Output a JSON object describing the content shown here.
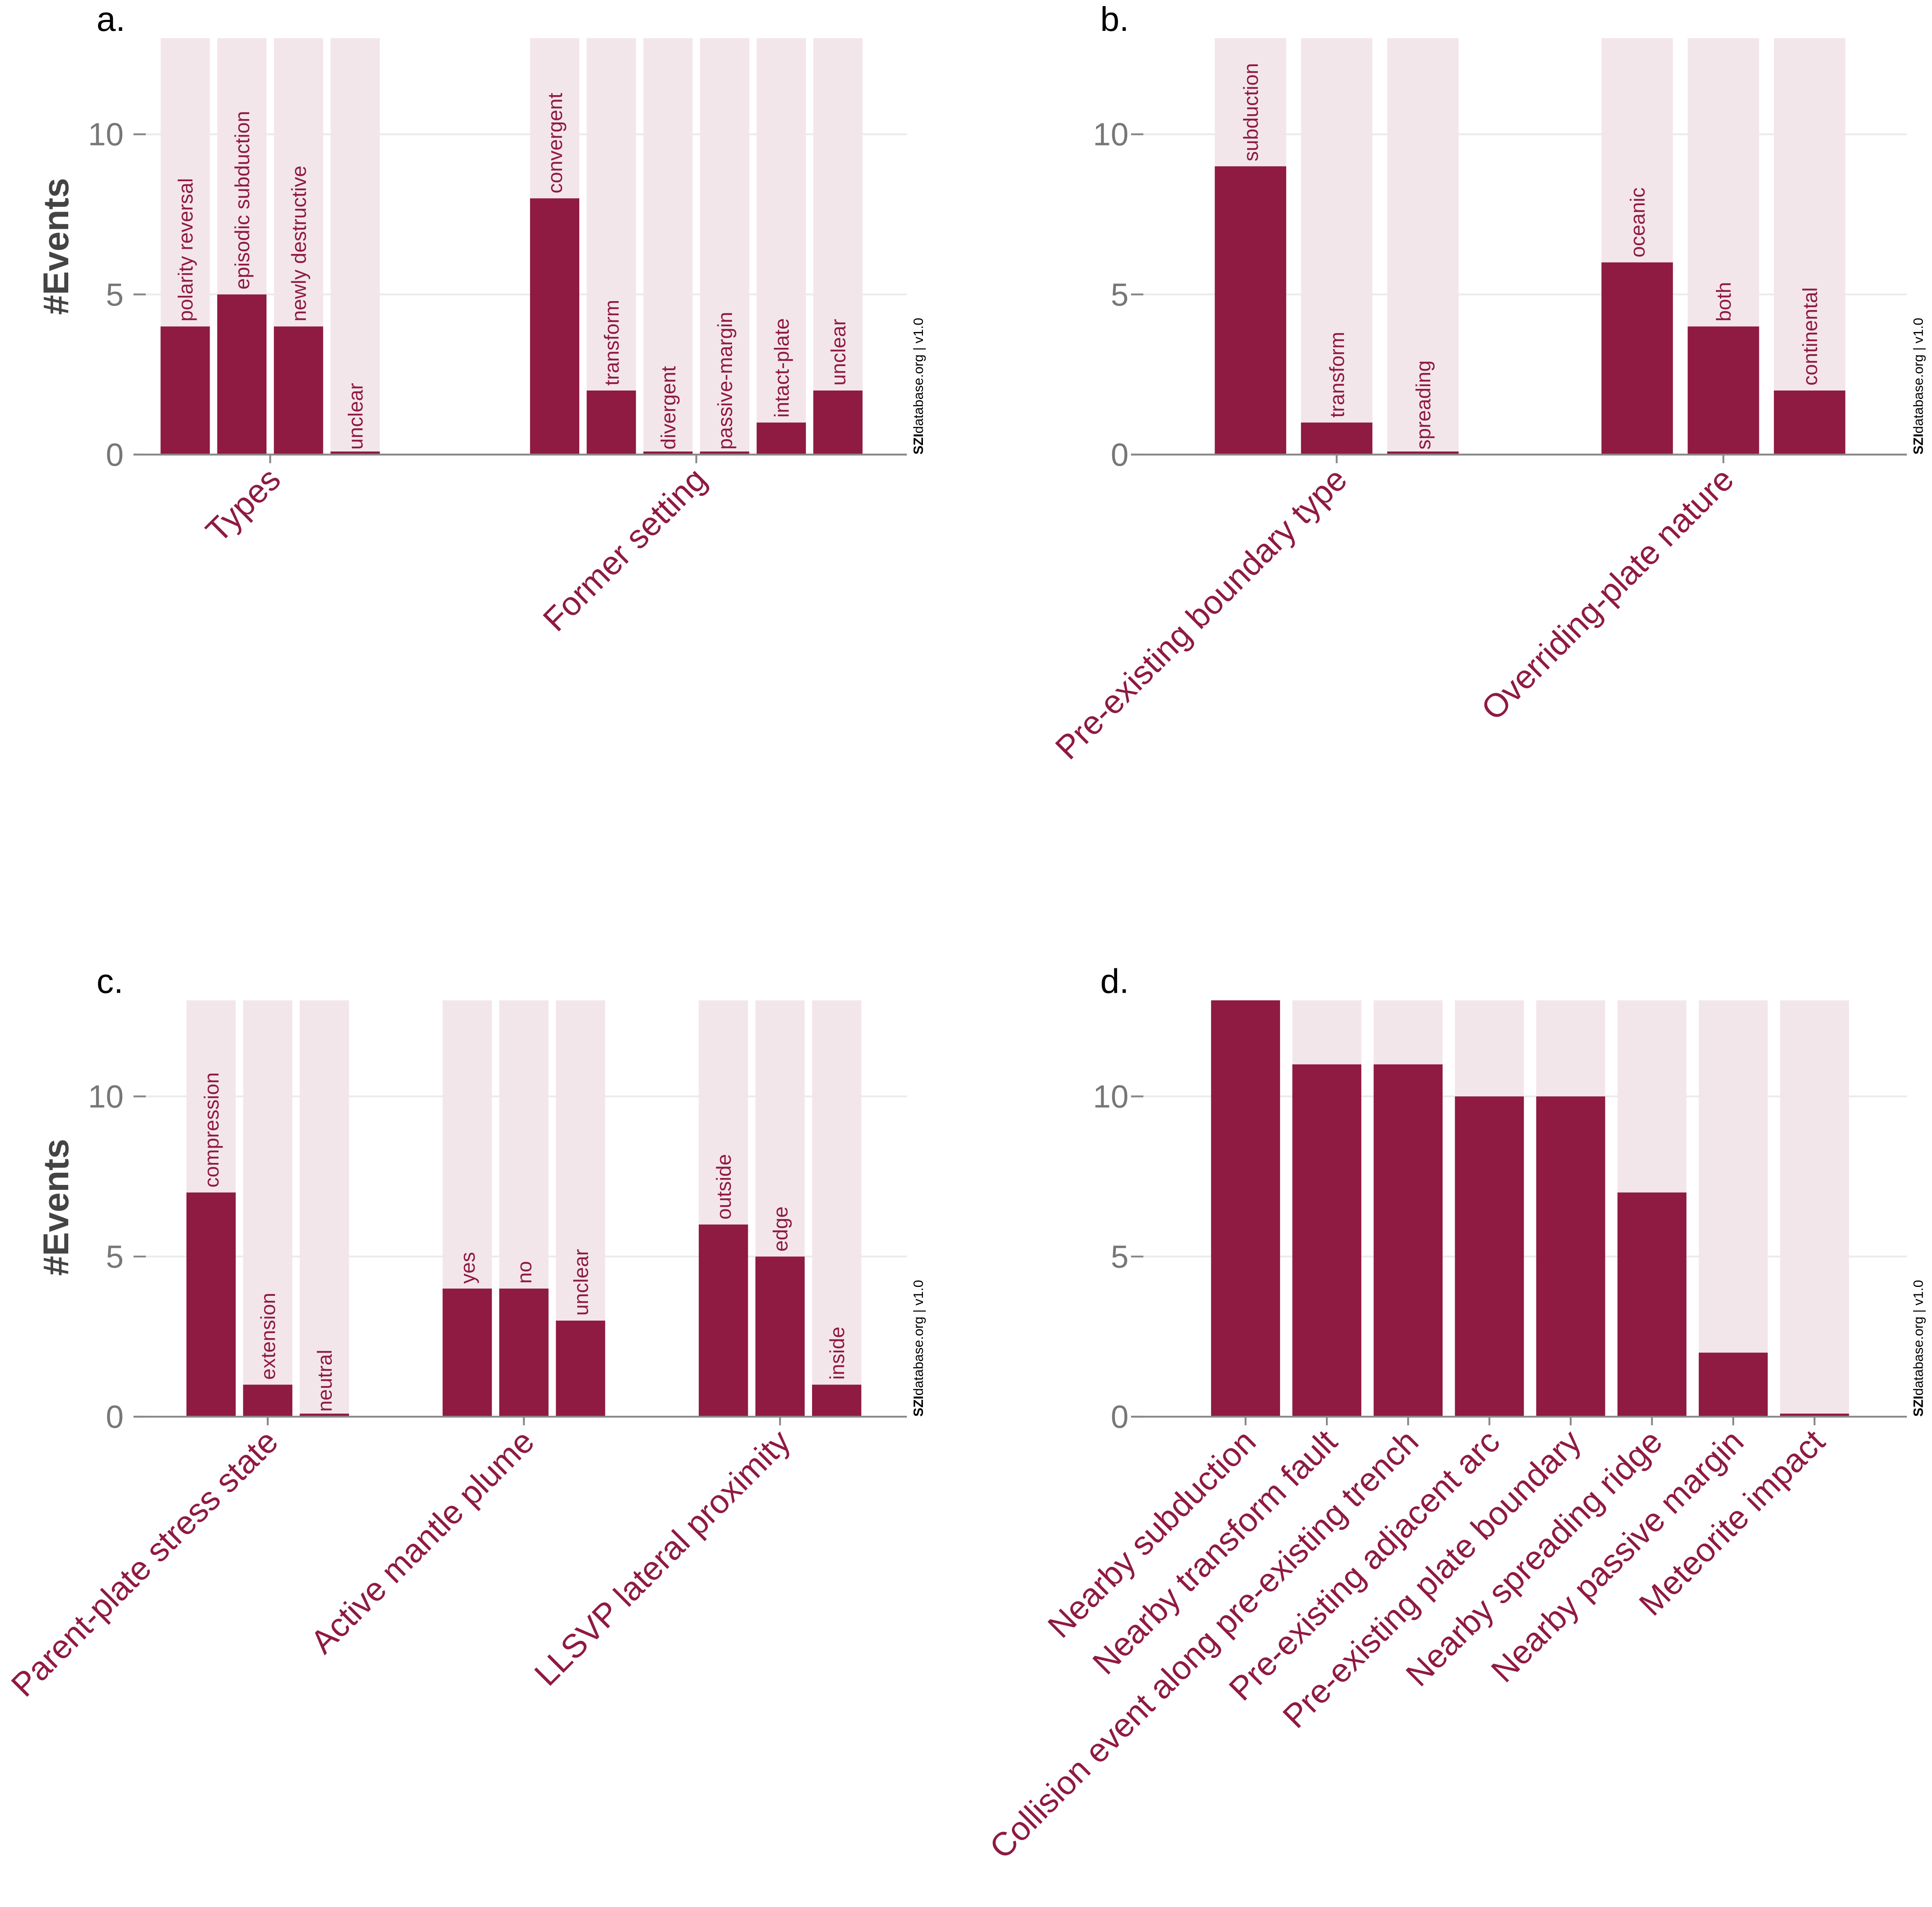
{
  "colors": {
    "bar": "#8f1a42",
    "background_bar": "#f3e6eb",
    "grid": "#ebebeb",
    "axis": "#888888",
    "label": "#8f1a42"
  },
  "watermark": {
    "bold": "SZI",
    "rest": "database.org | v1.0"
  },
  "chart_data": [
    {
      "type": "bar",
      "panel": "a.",
      "ylabel": "#Events",
      "ylim": [
        0,
        13
      ],
      "yticks": [
        0,
        5,
        10
      ],
      "grid": true,
      "background_max": 13,
      "groups": [
        {
          "name": "Types",
          "categories": [
            "polarity reversal",
            "episodic subduction",
            "newly destructive",
            "unclear"
          ],
          "values": [
            4,
            5,
            4,
            0
          ]
        },
        {
          "name": "Former setting",
          "categories": [
            "convergent",
            "transform",
            "divergent",
            "passive-margin",
            "intact-plate",
            "unclear"
          ],
          "values": [
            8,
            2,
            0,
            0,
            1,
            2
          ]
        }
      ]
    },
    {
      "type": "bar",
      "panel": "b.",
      "ylabel": "",
      "ylim": [
        0,
        13
      ],
      "yticks": [
        0,
        5,
        10
      ],
      "grid": true,
      "background_max": 13,
      "groups": [
        {
          "name": "Pre-existing boundary type",
          "categories": [
            "subduction",
            "transform",
            "spreading"
          ],
          "values": [
            9,
            1,
            0
          ]
        },
        {
          "name": "Overriding-plate nature",
          "categories": [
            "oceanic",
            "both",
            "continental"
          ],
          "values": [
            6,
            4,
            2
          ]
        }
      ]
    },
    {
      "type": "bar",
      "panel": "c.",
      "ylabel": "#Events",
      "ylim": [
        0,
        13
      ],
      "yticks": [
        0,
        5,
        10
      ],
      "grid": true,
      "background_max": 13,
      "groups": [
        {
          "name": "Parent-plate stress state",
          "categories": [
            "compression",
            "extension",
            "neutral"
          ],
          "values": [
            7,
            1,
            0
          ]
        },
        {
          "name": "Active mantle plume",
          "categories": [
            "yes",
            "no",
            "unclear"
          ],
          "values": [
            4,
            4,
            3
          ]
        },
        {
          "name": "LLSVP lateral proximity",
          "categories": [
            "outside",
            "edge",
            "inside"
          ],
          "values": [
            6,
            5,
            1
          ]
        }
      ]
    },
    {
      "type": "bar",
      "panel": "d.",
      "ylabel": "",
      "ylim": [
        0,
        13
      ],
      "yticks": [
        0,
        5,
        10
      ],
      "grid": true,
      "background_max": 13,
      "categories": [
        "Nearby subduction",
        "Nearby transform fault",
        "Collision event along pre-existing trench",
        "Pre-existing adjacent arc",
        "Pre-existing plate boundary",
        "Nearby spreading ridge",
        "Nearby passive margin",
        "Meteorite impact"
      ],
      "values": [
        13,
        11,
        11,
        10,
        10,
        7,
        2,
        0
      ]
    }
  ]
}
